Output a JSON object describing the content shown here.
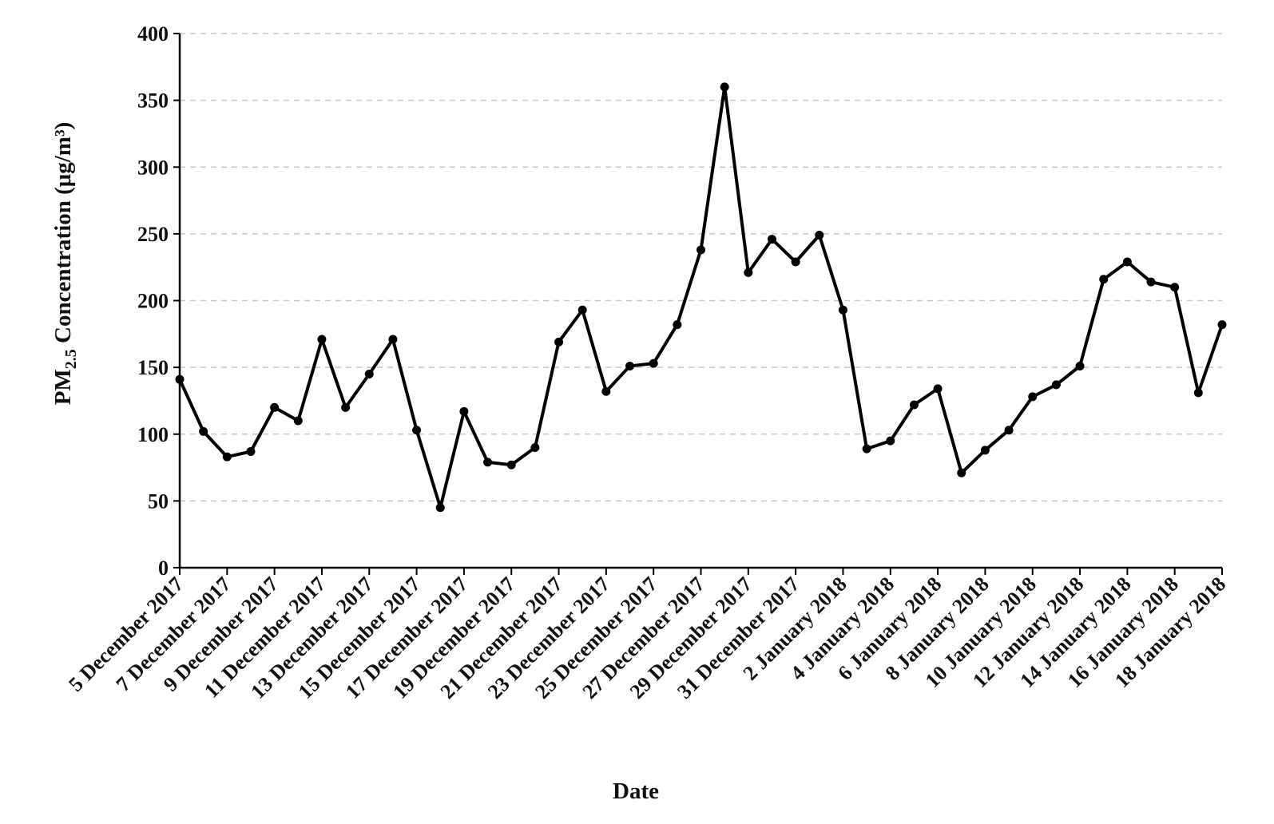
{
  "chart_data": {
    "type": "line",
    "title": "",
    "xlabel": "Date",
    "ylabel": {
      "prefix": "PM",
      "subscript": "2.5",
      "suffix": " Concentration (μg/m³)"
    },
    "ylim": [
      0,
      400
    ],
    "yticks": [
      0,
      50,
      100,
      150,
      200,
      250,
      300,
      350,
      400
    ],
    "grid": "horizontal dashed",
    "legend": "none",
    "colors": {
      "line": "#000000",
      "grid": "#c8c8c8"
    },
    "x_tick_labels": [
      "5 December 2017",
      "7 December 2017",
      "9 December 2017",
      "11 December 2017",
      "13 December 2017",
      "15 December 2017",
      "17 December 2017",
      "19 December 2017",
      "21 December 2017",
      "23 December 2017",
      "25 December 2017",
      "27 December 2017",
      "29 December 2017",
      "31 December 2017",
      "2 January 2018",
      "4 January 2018",
      "6 January 2018",
      "8 January 2018",
      "10 January 2018",
      "12 January 2018",
      "14 January 2018",
      "16 January 2018",
      "18 January 2018"
    ],
    "x": [
      "2017-12-05",
      "2017-12-06",
      "2017-12-07",
      "2017-12-08",
      "2017-12-09",
      "2017-12-10",
      "2017-12-11",
      "2017-12-12",
      "2017-12-13",
      "2017-12-14",
      "2017-12-15",
      "2017-12-16",
      "2017-12-17",
      "2017-12-18",
      "2017-12-19",
      "2017-12-20",
      "2017-12-21",
      "2017-12-22",
      "2017-12-23",
      "2017-12-24",
      "2017-12-25",
      "2017-12-26",
      "2017-12-27",
      "2017-12-28",
      "2017-12-29",
      "2017-12-30",
      "2017-12-31",
      "2018-01-01",
      "2018-01-02",
      "2018-01-03",
      "2018-01-04",
      "2018-01-05",
      "2018-01-06",
      "2018-01-07",
      "2018-01-08",
      "2018-01-09",
      "2018-01-10",
      "2018-01-11",
      "2018-01-12",
      "2018-01-13",
      "2018-01-14",
      "2018-01-15",
      "2018-01-16",
      "2018-01-17",
      "2018-01-18"
    ],
    "series": [
      {
        "values": [
          141,
          102,
          83,
          87,
          120,
          110,
          171,
          120,
          145,
          171,
          103,
          45,
          117,
          79,
          77,
          90,
          169,
          193,
          132,
          151,
          153,
          182,
          238,
          360,
          221,
          246,
          229,
          249,
          193,
          89,
          95,
          122,
          134,
          71,
          88,
          103,
          128,
          137,
          151,
          216,
          229,
          214,
          210,
          131,
          182
        ]
      }
    ]
  }
}
